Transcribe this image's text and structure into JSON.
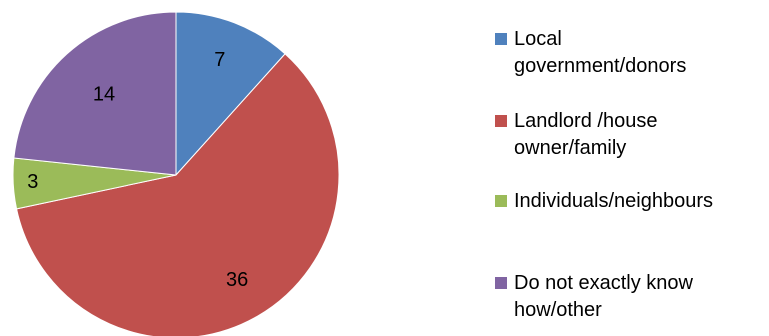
{
  "chart_data": {
    "type": "pie",
    "title": "",
    "slices": [
      {
        "label": "Local government/donors",
        "label_lines": [
          "Local",
          "government/donors"
        ],
        "value": 7,
        "color": "#4F81BD"
      },
      {
        "label": "Landlord /house owner/family",
        "label_lines": [
          "Landlord /house",
          "owner/family"
        ],
        "value": 36,
        "color": "#C0504D"
      },
      {
        "label": "Individuals/neighbours",
        "label_lines": [
          "Individuals/neighbours"
        ],
        "value": 3,
        "color": "#9BBB59"
      },
      {
        "label": "Do not exactly know how/other",
        "label_lines": [
          "Do not exactly know",
          "how/other"
        ],
        "value": 14,
        "color": "#8064A2"
      }
    ],
    "legend": {
      "position": "right"
    }
  }
}
